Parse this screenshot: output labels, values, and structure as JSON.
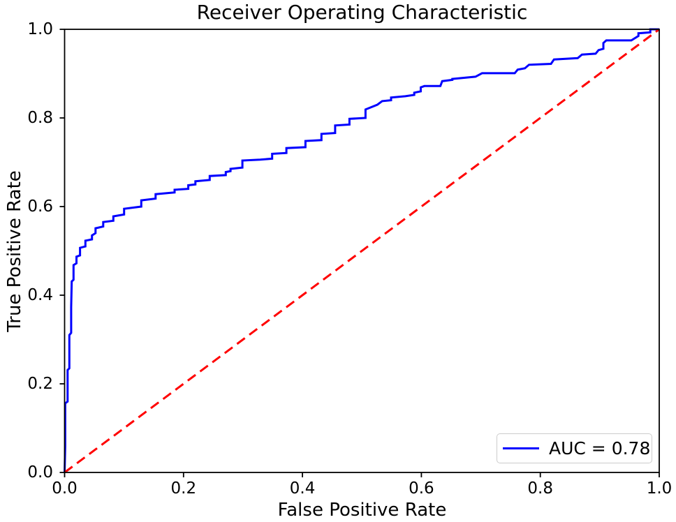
{
  "chart_data": {
    "type": "line",
    "title": "Receiver Operating Characteristic",
    "xlabel": "False Positive Rate",
    "ylabel": "True Positive Rate",
    "xlim": [
      0.0,
      1.0
    ],
    "ylim": [
      0.0,
      1.0
    ],
    "x_ticks": [
      0.0,
      0.2,
      0.4,
      0.6,
      0.8,
      1.0
    ],
    "y_ticks": [
      0.0,
      0.2,
      0.4,
      0.6,
      0.8,
      1.0
    ],
    "x_tick_labels": [
      "0.0",
      "0.2",
      "0.4",
      "0.6",
      "0.8",
      "1.0"
    ],
    "y_tick_labels": [
      "0.0",
      "0.2",
      "0.4",
      "0.6",
      "0.8",
      "1.0"
    ],
    "grid": false,
    "auc": 0.78,
    "legend": {
      "position": "lower right",
      "entries": [
        {
          "label": "AUC = 0.78",
          "color": "#0000ff",
          "line_style": "solid"
        }
      ]
    },
    "colors": {
      "curve": "#0000ff",
      "diagonal": "#ff0000",
      "spine": "#000000",
      "legend_border": "#cccccc",
      "background": "#ffffff"
    },
    "series": [
      {
        "name": "roc-curve",
        "color": "#0000ff",
        "style": "solid",
        "line_width": 3,
        "points": [
          [
            0.0,
            0.0
          ],
          [
            0.001,
            0.06
          ],
          [
            0.001,
            0.156
          ],
          [
            0.005,
            0.16
          ],
          [
            0.005,
            0.231
          ],
          [
            0.008,
            0.235
          ],
          [
            0.008,
            0.31
          ],
          [
            0.011,
            0.315
          ],
          [
            0.011,
            0.373
          ],
          [
            0.012,
            0.431
          ],
          [
            0.015,
            0.435
          ],
          [
            0.015,
            0.468
          ],
          [
            0.02,
            0.472
          ],
          [
            0.02,
            0.487
          ],
          [
            0.026,
            0.49
          ],
          [
            0.026,
            0.507
          ],
          [
            0.035,
            0.51
          ],
          [
            0.035,
            0.523
          ],
          [
            0.046,
            0.526
          ],
          [
            0.046,
            0.535
          ],
          [
            0.052,
            0.54
          ],
          [
            0.052,
            0.551
          ],
          [
            0.065,
            0.555
          ],
          [
            0.065,
            0.565
          ],
          [
            0.082,
            0.568
          ],
          [
            0.082,
            0.578
          ],
          [
            0.1,
            0.582
          ],
          [
            0.1,
            0.595
          ],
          [
            0.129,
            0.6
          ],
          [
            0.129,
            0.614
          ],
          [
            0.153,
            0.618
          ],
          [
            0.153,
            0.628
          ],
          [
            0.185,
            0.632
          ],
          [
            0.185,
            0.638
          ],
          [
            0.208,
            0.64
          ],
          [
            0.208,
            0.648
          ],
          [
            0.22,
            0.65
          ],
          [
            0.22,
            0.657
          ],
          [
            0.244,
            0.66
          ],
          [
            0.244,
            0.669
          ],
          [
            0.271,
            0.671
          ],
          [
            0.271,
            0.678
          ],
          [
            0.279,
            0.68
          ],
          [
            0.279,
            0.685
          ],
          [
            0.299,
            0.688
          ],
          [
            0.299,
            0.704
          ],
          [
            0.329,
            0.706
          ],
          [
            0.349,
            0.708
          ],
          [
            0.349,
            0.719
          ],
          [
            0.373,
            0.721
          ],
          [
            0.373,
            0.732
          ],
          [
            0.405,
            0.734
          ],
          [
            0.405,
            0.748
          ],
          [
            0.432,
            0.75
          ],
          [
            0.432,
            0.764
          ],
          [
            0.455,
            0.766
          ],
          [
            0.455,
            0.783
          ],
          [
            0.479,
            0.785
          ],
          [
            0.479,
            0.798
          ],
          [
            0.506,
            0.8
          ],
          [
            0.506,
            0.819
          ],
          [
            0.526,
            0.83
          ],
          [
            0.534,
            0.838
          ],
          [
            0.549,
            0.84
          ],
          [
            0.549,
            0.846
          ],
          [
            0.573,
            0.849
          ],
          [
            0.588,
            0.852
          ],
          [
            0.588,
            0.857
          ],
          [
            0.599,
            0.86
          ],
          [
            0.599,
            0.869
          ],
          [
            0.605,
            0.872
          ],
          [
            0.632,
            0.872
          ],
          [
            0.635,
            0.883
          ],
          [
            0.652,
            0.886
          ],
          [
            0.652,
            0.888
          ],
          [
            0.691,
            0.893
          ],
          [
            0.702,
            0.901
          ],
          [
            0.757,
            0.901
          ],
          [
            0.762,
            0.909
          ],
          [
            0.774,
            0.912
          ],
          [
            0.781,
            0.92
          ],
          [
            0.818,
            0.922
          ],
          [
            0.823,
            0.932
          ],
          [
            0.863,
            0.935
          ],
          [
            0.87,
            0.943
          ],
          [
            0.893,
            0.945
          ],
          [
            0.898,
            0.953
          ],
          [
            0.906,
            0.956
          ],
          [
            0.906,
            0.969
          ],
          [
            0.911,
            0.975
          ],
          [
            0.953,
            0.975
          ],
          [
            0.965,
            0.985
          ],
          [
            0.965,
            0.991
          ],
          [
            0.985,
            0.993
          ],
          [
            0.985,
            1.0
          ],
          [
            1.0,
            1.0
          ]
        ]
      },
      {
        "name": "chance-line",
        "color": "#ff0000",
        "style": "dashed",
        "line_width": 3,
        "points": [
          [
            0.0,
            0.0
          ],
          [
            1.0,
            1.0
          ]
        ]
      }
    ]
  }
}
